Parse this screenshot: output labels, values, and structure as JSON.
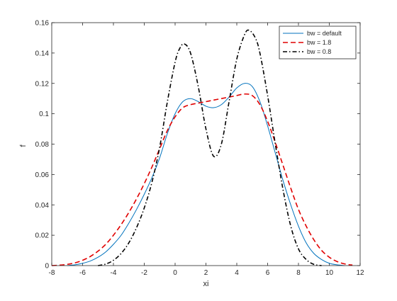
{
  "chart_data": {
    "type": "line",
    "title": "",
    "xlabel": "xi",
    "ylabel": "f",
    "xlim": [
      -8,
      12
    ],
    "ylim": [
      0,
      0.16
    ],
    "xticks": [
      -8,
      -6,
      -4,
      -2,
      0,
      2,
      4,
      6,
      8,
      10,
      12
    ],
    "yticks": [
      0,
      0.02,
      0.04,
      0.06,
      0.08,
      0.1,
      0.12,
      0.14,
      0.16
    ],
    "xtick_labels": [
      "-8",
      "-6",
      "-4",
      "-2",
      "0",
      "2",
      "4",
      "6",
      "8",
      "10",
      "12"
    ],
    "ytick_labels": [
      "0",
      "0.02",
      "0.04",
      "0.06",
      "0.08",
      "0.1",
      "0.12",
      "0.14",
      "0.16"
    ],
    "grid": false,
    "legend_position": "top-right",
    "series": [
      {
        "name": "bw = default",
        "color": "#0072BD",
        "dash": "solid",
        "x": [
          -7,
          -6.5,
          -6,
          -5.5,
          -5,
          -4.5,
          -4,
          -3.5,
          -3,
          -2.5,
          -2,
          -1.5,
          -1,
          -0.5,
          0,
          0.5,
          1,
          1.5,
          2,
          2.5,
          3,
          3.5,
          4,
          4.5,
          5,
          5.5,
          6,
          6.5,
          7,
          7.5,
          8,
          8.5,
          9,
          9.5,
          10,
          10.5,
          11
        ],
        "y": [
          0.0,
          0.0005,
          0.0015,
          0.003,
          0.0055,
          0.009,
          0.014,
          0.02,
          0.028,
          0.037,
          0.047,
          0.058,
          0.071,
          0.087,
          0.1,
          0.108,
          0.11,
          0.108,
          0.105,
          0.104,
          0.106,
          0.111,
          0.117,
          0.12,
          0.118,
          0.108,
          0.092,
          0.074,
          0.056,
          0.04,
          0.026,
          0.015,
          0.008,
          0.004,
          0.0015,
          0.0005,
          0.0
        ]
      },
      {
        "name": "bw = 1.8",
        "color": "#E00000",
        "dash": "dashed",
        "x": [
          -8,
          -7.5,
          -7,
          -6.5,
          -6,
          -5.5,
          -5,
          -4.5,
          -4,
          -3.5,
          -3,
          -2.5,
          -2,
          -1.5,
          -1,
          -0.5,
          0,
          0.5,
          1,
          1.5,
          2,
          2.5,
          3,
          3.5,
          4,
          4.5,
          5,
          5.5,
          6,
          6.5,
          7,
          7.5,
          8,
          8.5,
          9,
          9.5,
          10,
          10.5,
          11,
          11.5
        ],
        "y": [
          0.0,
          0.0003,
          0.0008,
          0.0018,
          0.0035,
          0.006,
          0.0095,
          0.014,
          0.02,
          0.027,
          0.035,
          0.044,
          0.054,
          0.065,
          0.077,
          0.089,
          0.098,
          0.104,
          0.106,
          0.107,
          0.108,
          0.109,
          0.11,
          0.111,
          0.112,
          0.113,
          0.112,
          0.106,
          0.095,
          0.081,
          0.066,
          0.051,
          0.037,
          0.026,
          0.017,
          0.01,
          0.0055,
          0.0027,
          0.0011,
          0.0003
        ]
      },
      {
        "name": "bw = 0.8",
        "color": "#000000",
        "dash": "dashdot",
        "x": [
          -5,
          -4.5,
          -4,
          -3.5,
          -3,
          -2.5,
          -2,
          -1.5,
          -1,
          -0.5,
          0,
          0.3,
          0.6,
          1,
          1.5,
          2,
          2.5,
          3,
          3.5,
          4,
          4.5,
          4.8,
          5.2,
          5.5,
          6,
          6.5,
          7,
          7.5,
          8,
          8.5,
          9,
          9.5
        ],
        "y": [
          0.0,
          0.001,
          0.0035,
          0.008,
          0.015,
          0.025,
          0.038,
          0.055,
          0.078,
          0.108,
          0.134,
          0.143,
          0.146,
          0.14,
          0.118,
          0.09,
          0.072,
          0.08,
          0.108,
          0.136,
          0.152,
          0.155,
          0.15,
          0.14,
          0.112,
          0.08,
          0.05,
          0.026,
          0.011,
          0.004,
          0.0008,
          0.0
        ]
      }
    ]
  }
}
